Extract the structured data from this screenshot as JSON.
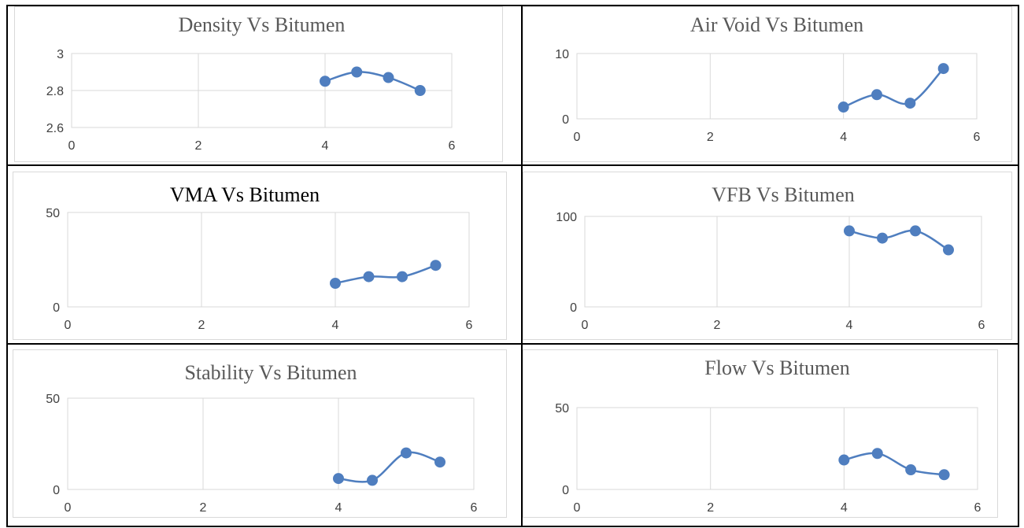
{
  "chart_data": [
    {
      "type": "scatter",
      "title": "Density Vs Bitumen",
      "smooth": true,
      "xlim": [
        0,
        6
      ],
      "ylim": [
        2.6,
        3
      ],
      "x_ticks": [
        "0",
        "2",
        "4",
        "6"
      ],
      "y_ticks": [
        "2.6",
        "2.8",
        "3"
      ],
      "y_tick_values": [
        2.6,
        2.8,
        3
      ],
      "grid": true,
      "points": {
        "x": [
          4,
          4.5,
          5,
          5.5
        ],
        "y": [
          2.85,
          2.9,
          2.87,
          2.8
        ]
      }
    },
    {
      "type": "scatter",
      "title": "Air Void Vs Bitumen",
      "smooth": true,
      "xlim": [
        0,
        6
      ],
      "ylim": [
        0,
        10
      ],
      "x_ticks": [
        "0",
        "2",
        "4",
        "6"
      ],
      "y_ticks": [
        "0",
        "10"
      ],
      "y_tick_values": [
        0,
        10
      ],
      "grid": true,
      "points": {
        "x": [
          4,
          4.5,
          5,
          5.5
        ],
        "y": [
          1.8,
          3.7,
          2.4,
          7.7
        ]
      }
    },
    {
      "type": "scatter",
      "title": "VMA Vs Bitumen",
      "smooth": true,
      "xlim": [
        0,
        6
      ],
      "ylim": [
        0,
        50
      ],
      "x_ticks": [
        "0",
        "2",
        "4",
        "6"
      ],
      "y_ticks": [
        "0",
        "50"
      ],
      "y_tick_values": [
        0,
        50
      ],
      "grid": true,
      "points": {
        "x": [
          4,
          4.5,
          5,
          5.5
        ],
        "y": [
          12.5,
          16,
          16,
          22
        ]
      }
    },
    {
      "type": "scatter",
      "title": "VFB Vs Bitumen",
      "smooth": true,
      "xlim": [
        0,
        6
      ],
      "ylim": [
        0,
        100
      ],
      "x_ticks": [
        "0",
        "2",
        "4",
        "6"
      ],
      "y_ticks": [
        "0",
        "100"
      ],
      "y_tick_values": [
        0,
        100
      ],
      "grid": true,
      "points": {
        "x": [
          4,
          4.5,
          5,
          5.5
        ],
        "y": [
          84,
          76,
          84,
          63
        ]
      }
    },
    {
      "type": "scatter",
      "title": "Stability Vs Bitumen",
      "smooth": true,
      "xlim": [
        0,
        6
      ],
      "ylim": [
        0,
        50
      ],
      "x_ticks": [
        "0",
        "2",
        "4",
        "6"
      ],
      "y_ticks": [
        "0",
        "50"
      ],
      "y_tick_values": [
        0,
        50
      ],
      "grid": true,
      "points": {
        "x": [
          4,
          4.5,
          5,
          5.5
        ],
        "y": [
          6,
          5,
          20,
          15
        ]
      }
    },
    {
      "type": "scatter",
      "title": "Flow Vs Bitumen",
      "smooth": true,
      "xlim": [
        0,
        6
      ],
      "ylim": [
        0,
        50
      ],
      "x_ticks": [
        "0",
        "2",
        "4",
        "6"
      ],
      "y_ticks": [
        "0",
        "50"
      ],
      "y_tick_values": [
        0,
        50
      ],
      "grid": true,
      "points": {
        "x": [
          4,
          4.5,
          5,
          5.5
        ],
        "y": [
          18,
          22,
          12,
          9
        ]
      }
    }
  ],
  "colors": {
    "series": "#4f7ebf",
    "grid": "#d9d9d9",
    "axis": "#bfbfbf"
  }
}
